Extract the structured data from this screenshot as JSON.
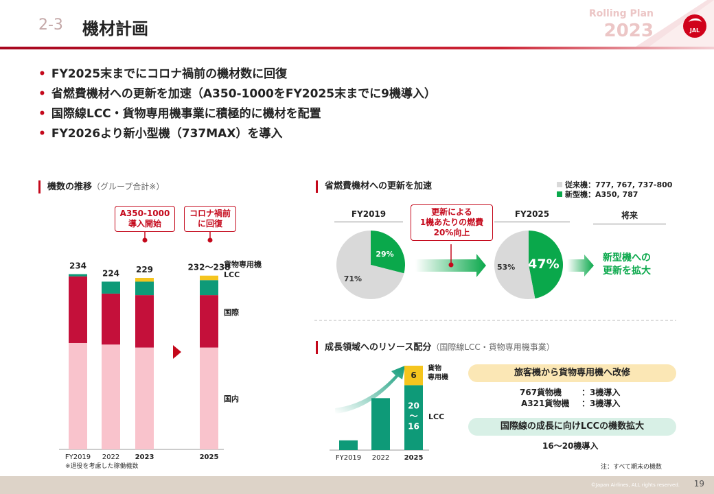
{
  "header": {
    "section_number": "2-3",
    "title": "機材計画",
    "rolling_plan_label": "Rolling Plan",
    "rolling_plan_year": "2023",
    "logo_icon": "jal-crane-logo-icon",
    "logo_text": "JAL",
    "accent_color": "#c4081b"
  },
  "bullets": [
    "FY2025末までにコロナ禍前の機材数に回復",
    "省燃費機材への更新を加速（A350-1000をFY2025末までに9機導入）",
    "国際線LCC・貨物専用機事業に積極的に機材を配置",
    "FY2026より新小型機（737MAX）を導入"
  ],
  "fleet": {
    "heading": "機数の推移",
    "heading_sub": "（グループ合計※）",
    "callout_a350": [
      "A350-1000",
      "導入開始"
    ],
    "callout_precovid": [
      "コロナ禍前",
      "に回復"
    ],
    "totals": [
      "234",
      "224",
      "229",
      "232〜238"
    ],
    "segment_labels": {
      "cargo": "貨物専用機",
      "lcc": "LCC",
      "international": "国際",
      "domestic": "国内"
    },
    "footnote": "※退役を考慮した稼働機数",
    "chart_data": {
      "type": "bar",
      "stacked": true,
      "categories": [
        "FY2019",
        "2022",
        "2023",
        "2025"
      ],
      "series": [
        {
          "name": "国内",
          "values": [
            142,
            140,
            136,
            136
          ],
          "color": "#f9c3cc"
        },
        {
          "name": "国際",
          "values": [
            89,
            68,
            70,
            70
          ],
          "color": "#c4103a"
        },
        {
          "name": "LCC",
          "values": [
            3,
            16,
            18,
            20
          ],
          "color": "#0e9a78"
        },
        {
          "name": "貨物専用機",
          "values": [
            0,
            0,
            5,
            6
          ],
          "color": "#f5c51e"
        }
      ],
      "ylim": [
        0,
        240
      ]
    }
  },
  "fuel": {
    "heading": "省燃費機材への更新を加速",
    "legend": [
      {
        "label": "従来機：777, 767, 737-800",
        "color": "#d9d9d9"
      },
      {
        "label": "新型機：A350, 787",
        "color": "#0aa84b"
      }
    ],
    "col_fy2019": "FY2019",
    "col_fy2025": "FY2025",
    "col_future": "将来",
    "callout": [
      "更新による",
      "1機あたりの燃費",
      "20%向上"
    ],
    "future_text": [
      "新型機への",
      "更新を拡大"
    ],
    "chart_data": [
      {
        "type": "pie",
        "title": "FY2019",
        "slices": [
          {
            "name": "新型機",
            "value": 29,
            "label": "29%",
            "color": "#0aa84b"
          },
          {
            "name": "従来機",
            "value": 71,
            "label": "71%",
            "color": "#d9d9d9"
          }
        ]
      },
      {
        "type": "pie",
        "title": "FY2025",
        "slices": [
          {
            "name": "新型機",
            "value": 47,
            "label": "47%",
            "color": "#0aa84b"
          },
          {
            "name": "従来機",
            "value": 53,
            "label": "53%",
            "color": "#d9d9d9"
          }
        ]
      }
    ]
  },
  "growth": {
    "heading": "成長領域へのリソース配分",
    "heading_sub": "（国際線LCC・貨物専用機事業）",
    "categories": [
      "FY2019",
      "2022",
      "2025"
    ],
    "bar_label_cargo": "6",
    "bar_label_lcc": [
      "20",
      "〜",
      "16"
    ],
    "side_label_cargo": [
      "貨物",
      "専用機"
    ],
    "side_label_lcc": "LCC",
    "pill_cargo": "旅客機から貨物専用機へ改修",
    "cargo_lines": [
      {
        "name": "767貨物機",
        "value": "：3機導入"
      },
      {
        "name": "A321貨物機",
        "value": "：3機導入"
      }
    ],
    "pill_lcc": "国際線の成長に向けLCCの機数拡大",
    "lcc_line": "16〜20機導入",
    "chart_data": {
      "type": "bar",
      "stacked": true,
      "categories": [
        "FY2019",
        "2022",
        "2025"
      ],
      "series": [
        {
          "name": "LCC",
          "values": [
            3,
            16,
            20
          ],
          "color": "#0e9a78"
        },
        {
          "name": "貨物専用機",
          "values": [
            0,
            0,
            6
          ],
          "color": "#f5c51e"
        }
      ],
      "ylim": [
        0,
        26
      ]
    }
  },
  "note": "注：すべて期末の機数",
  "footer": {
    "copyright": "©Japan Airlines, ALL rights reserved.",
    "page": "19"
  }
}
